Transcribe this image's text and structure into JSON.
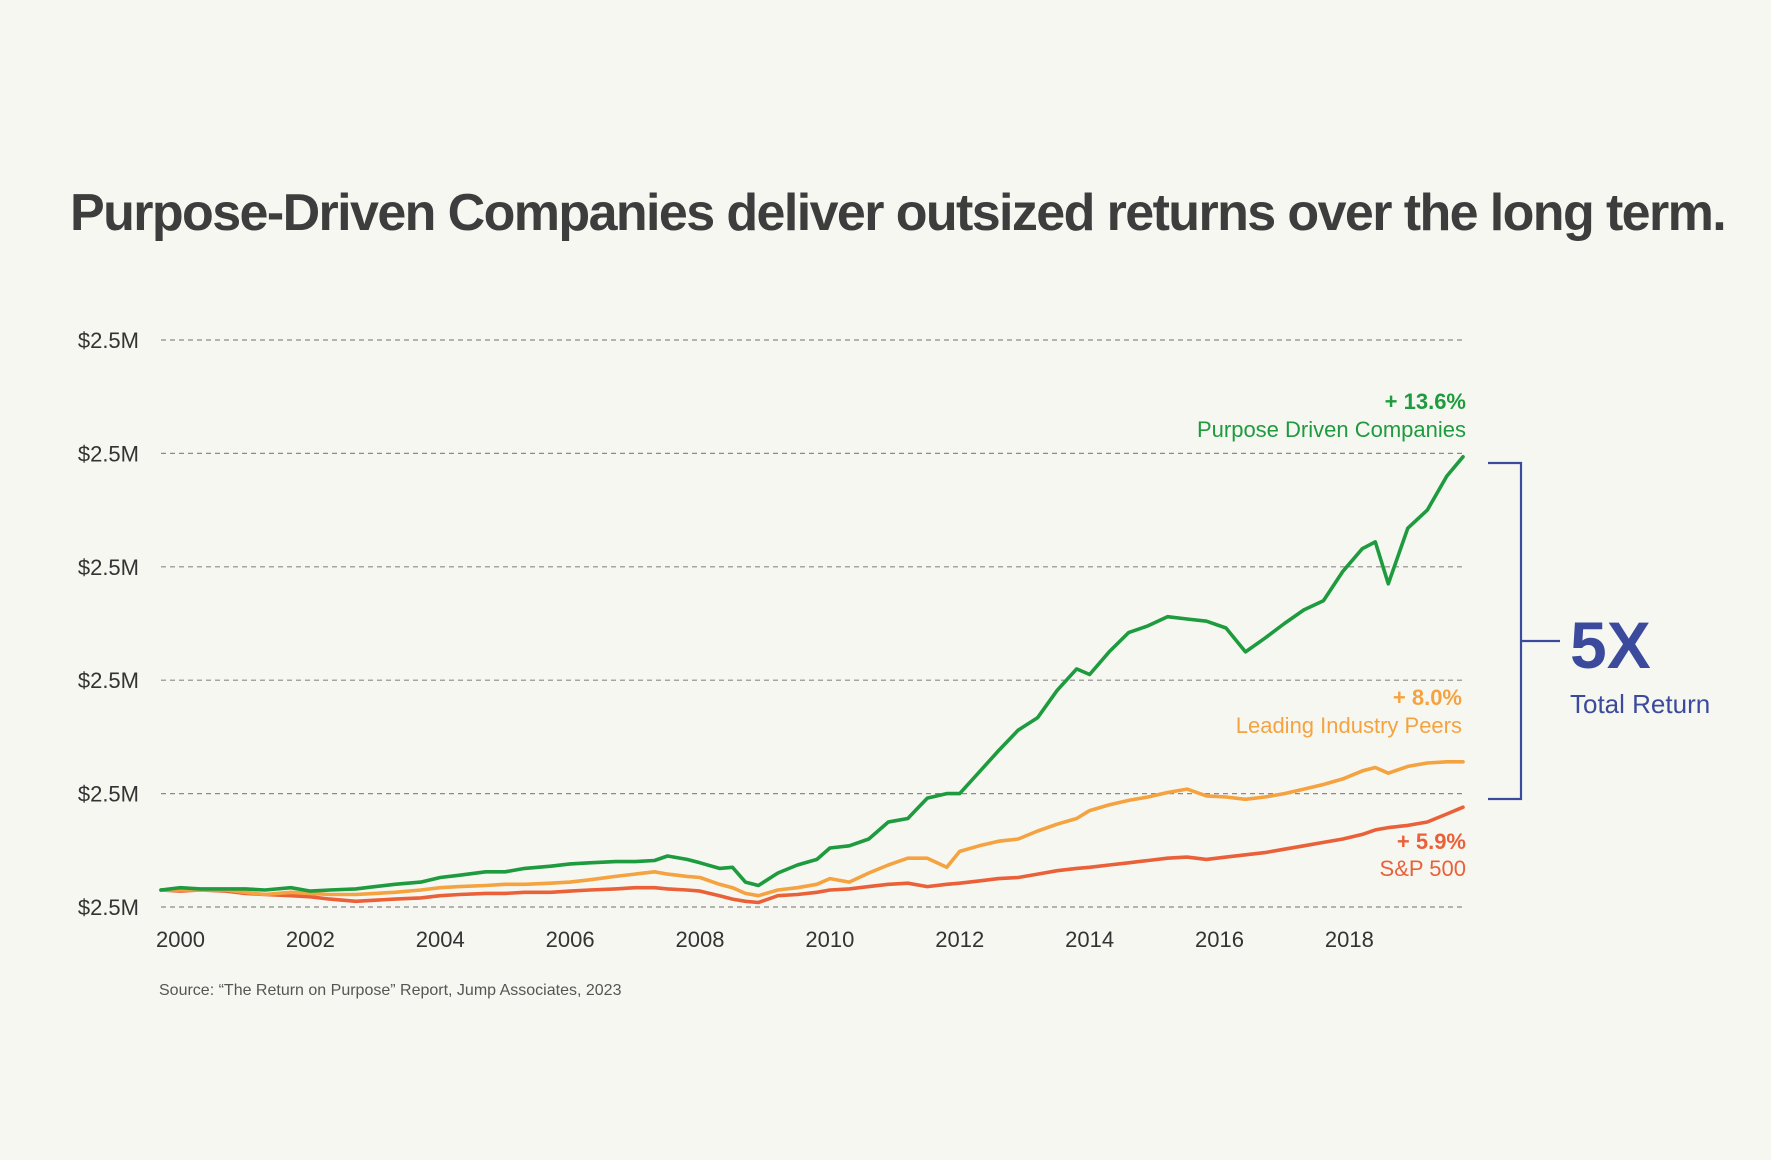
{
  "chart_data": {
    "type": "line",
    "title": "Purpose-Driven Companies deliver outsized returns over the long term.",
    "xlabel": "",
    "ylabel": "",
    "x_tick_labels": [
      "2000",
      "2002",
      "2004",
      "2006",
      "2008",
      "2010",
      "2012",
      "2014",
      "2016",
      "2018"
    ],
    "y_tick_labels": [
      "$2.5M",
      "$2.5M",
      "$2.5M",
      "$2.5M",
      "$2.5M",
      "$2.5M"
    ],
    "xlim": [
      1999.7,
      2019.75
    ],
    "ylim": [
      0,
      500
    ],
    "grid": "horizontal dashed",
    "series": [
      {
        "name": "Purpose Driven Companies",
        "return_label": "+ 13.6%",
        "color": "#1e9b3e",
        "x": [
          1999.7,
          2000.0,
          2000.3,
          2000.7,
          2001.0,
          2001.3,
          2001.7,
          2002.0,
          2002.3,
          2002.7,
          2003.0,
          2003.3,
          2003.7,
          2004.0,
          2004.3,
          2004.7,
          2005.0,
          2005.3,
          2005.7,
          2006.0,
          2006.3,
          2006.7,
          2007.0,
          2007.3,
          2007.5,
          2007.8,
          2008.0,
          2008.3,
          2008.5,
          2008.7,
          2008.9,
          2009.2,
          2009.5,
          2009.8,
          2010.0,
          2010.3,
          2010.6,
          2010.9,
          2011.2,
          2011.5,
          2011.8,
          2012.0,
          2012.3,
          2012.6,
          2012.9,
          2013.2,
          2013.5,
          2013.8,
          2014.0,
          2014.3,
          2014.6,
          2014.9,
          2015.2,
          2015.5,
          2015.8,
          2016.1,
          2016.4,
          2016.7,
          2017.0,
          2017.3,
          2017.6,
          2017.9,
          2018.2,
          2018.4,
          2018.6,
          2018.9,
          2019.2,
          2019.5,
          2019.75
        ],
        "values": [
          15,
          17,
          16,
          16,
          16,
          15,
          17,
          14,
          15,
          16,
          18,
          20,
          22,
          26,
          28,
          31,
          31,
          34,
          36,
          38,
          39,
          40,
          40,
          41,
          45,
          42,
          39,
          34,
          35,
          22,
          19,
          30,
          37,
          42,
          52,
          54,
          60,
          75,
          78,
          96,
          100,
          100,
          119,
          138,
          156,
          167,
          191,
          210,
          205,
          225,
          242,
          248,
          256,
          254,
          252,
          246,
          225,
          237,
          250,
          262,
          270,
          296,
          316,
          322,
          285,
          334,
          350,
          380,
          397
        ]
      },
      {
        "name": "Leading Industry Peers",
        "return_label": "+ 8.0%",
        "color": "#f4a340",
        "x": [
          1999.7,
          2000.0,
          2000.3,
          2000.7,
          2001.0,
          2001.3,
          2001.7,
          2002.0,
          2002.3,
          2002.7,
          2003.0,
          2003.3,
          2003.7,
          2004.0,
          2004.3,
          2004.7,
          2005.0,
          2005.3,
          2005.7,
          2006.0,
          2006.3,
          2006.7,
          2007.0,
          2007.3,
          2007.5,
          2007.8,
          2008.0,
          2008.3,
          2008.5,
          2008.7,
          2008.9,
          2009.2,
          2009.5,
          2009.8,
          2010.0,
          2010.3,
          2010.6,
          2010.9,
          2011.2,
          2011.5,
          2011.8,
          2012.0,
          2012.3,
          2012.6,
          2012.9,
          2013.2,
          2013.5,
          2013.8,
          2014.0,
          2014.3,
          2014.6,
          2014.9,
          2015.2,
          2015.5,
          2015.8,
          2016.1,
          2016.4,
          2016.7,
          2017.0,
          2017.3,
          2017.6,
          2017.9,
          2018.2,
          2018.4,
          2018.6,
          2018.9,
          2019.2,
          2019.5,
          2019.75
        ],
        "values": [
          15,
          15,
          15,
          15,
          13,
          11,
          13,
          12,
          11,
          11,
          12,
          13,
          15,
          17,
          18,
          19,
          20,
          20,
          21,
          22,
          24,
          27,
          29,
          31,
          29,
          27,
          26,
          20,
          17,
          12,
          10,
          15,
          17,
          20,
          25,
          22,
          30,
          37,
          43,
          43,
          35,
          49,
          54,
          58,
          60,
          67,
          73,
          78,
          85,
          90,
          94,
          97,
          101,
          104,
          98,
          97,
          95,
          97,
          100,
          104,
          108,
          113,
          120,
          123,
          118,
          124,
          127,
          128,
          128
        ]
      },
      {
        "name": "S&P 500",
        "return_label": "+ 5.9%",
        "color": "#ea6139",
        "x": [
          1999.7,
          2000.0,
          2000.3,
          2000.7,
          2001.0,
          2001.3,
          2001.7,
          2002.0,
          2002.3,
          2002.7,
          2003.0,
          2003.3,
          2003.7,
          2004.0,
          2004.3,
          2004.7,
          2005.0,
          2005.3,
          2005.7,
          2006.0,
          2006.3,
          2006.7,
          2007.0,
          2007.3,
          2007.5,
          2007.8,
          2008.0,
          2008.3,
          2008.5,
          2008.7,
          2008.9,
          2009.2,
          2009.5,
          2009.8,
          2010.0,
          2010.3,
          2010.6,
          2010.9,
          2011.2,
          2011.5,
          2011.8,
          2012.0,
          2012.3,
          2012.6,
          2012.9,
          2013.2,
          2013.5,
          2013.8,
          2014.0,
          2014.3,
          2014.6,
          2014.9,
          2015.2,
          2015.5,
          2015.8,
          2016.1,
          2016.4,
          2016.7,
          2017.0,
          2017.3,
          2017.6,
          2017.9,
          2018.2,
          2018.4,
          2018.6,
          2018.9,
          2019.2,
          2019.5,
          2019.75
        ],
        "values": [
          15,
          14,
          15,
          14,
          12,
          11,
          10,
          9,
          7,
          5,
          6,
          7,
          8,
          10,
          11,
          12,
          12,
          13,
          13,
          14,
          15,
          16,
          17,
          17,
          16,
          15,
          14,
          10,
          7,
          5,
          4,
          10,
          11,
          13,
          15,
          16,
          18,
          20,
          21,
          18,
          20,
          21,
          23,
          25,
          26,
          29,
          32,
          34,
          35,
          37,
          39,
          41,
          43,
          44,
          42,
          44,
          46,
          48,
          51,
          54,
          57,
          60,
          64,
          68,
          70,
          72,
          75,
          82,
          88
        ]
      }
    ],
    "annotations": {
      "bracket_label_big": "5X",
      "bracket_label_small": "Total Return"
    },
    "source": "Source: “The Return on Purpose” Report, Jump Associates, 2023"
  },
  "colors": {
    "background": "#f7f7f2",
    "title": "#3d3d3d",
    "axis_text": "#333333",
    "grid": "#8a8a8a",
    "bracket": "#3b4a9c",
    "source": "#555555"
  }
}
